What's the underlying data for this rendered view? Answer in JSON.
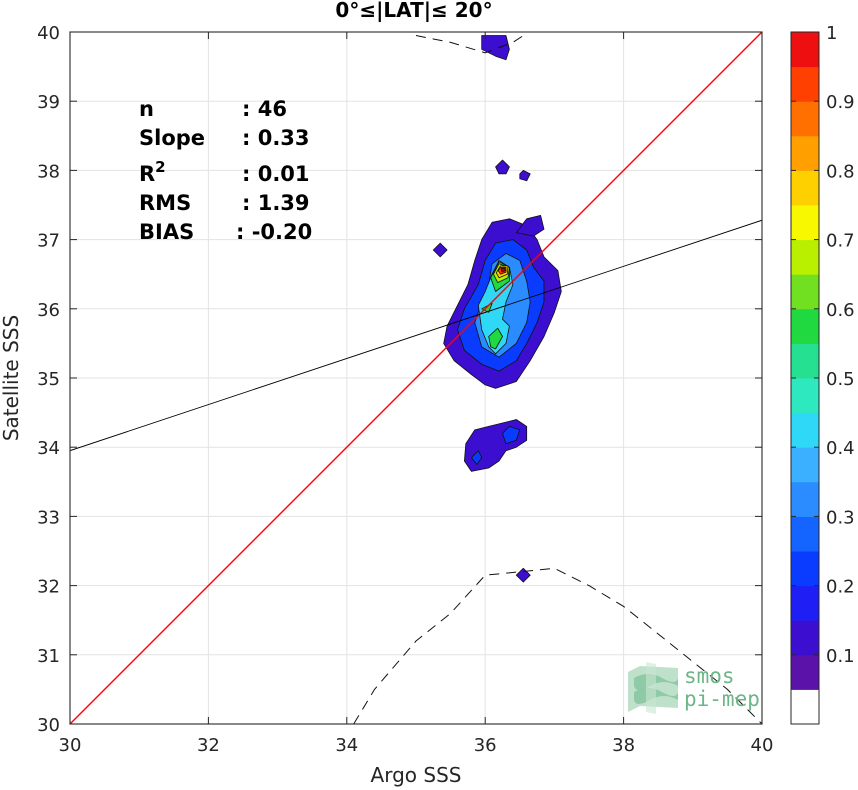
{
  "chart_data": {
    "type": "heatmap",
    "title": "0°≤|LAT|≤ 20°",
    "xlabel": "Argo SSS",
    "ylabel": "Satellite SSS",
    "xlim": [
      30,
      40
    ],
    "ylim": [
      30,
      40
    ],
    "xticks": [
      30,
      32,
      34,
      36,
      38,
      40
    ],
    "yticks": [
      30,
      31,
      32,
      33,
      34,
      35,
      36,
      37,
      38,
      39,
      40
    ],
    "grid": true,
    "stats": [
      {
        "label": "n",
        "value": ": 46"
      },
      {
        "label": "Slope",
        "value": ": 0.33"
      },
      {
        "label": "R",
        "sup": "2",
        "value": ": 0.01"
      },
      {
        "label": "RMS",
        "value": ": 1.39"
      },
      {
        "label": "BIAS",
        "value": ": -0.20"
      }
    ],
    "identity_line": {
      "color": "#ff0000",
      "slope": 1,
      "intercept": 0
    },
    "regression_line": {
      "color": "#000000",
      "slope": 0.33,
      "x0": 30,
      "y0": 33.95,
      "x1": 40,
      "y1": 37.28
    },
    "reference_curves": [
      {
        "style": "dashed",
        "points": [
          [
            35.0,
            39.95
          ],
          [
            35.5,
            39.85
          ],
          [
            36.0,
            39.7
          ],
          [
            36.4,
            39.85
          ],
          [
            36.6,
            39.98
          ]
        ]
      },
      {
        "style": "dashed",
        "points": [
          [
            34.1,
            30.0
          ],
          [
            34.4,
            30.5
          ],
          [
            35.0,
            31.2
          ],
          [
            35.5,
            31.6
          ],
          [
            36.0,
            32.15
          ],
          [
            36.5,
            32.2
          ],
          [
            37.0,
            32.25
          ],
          [
            37.5,
            32.0
          ],
          [
            38.0,
            31.7
          ],
          [
            38.5,
            31.3
          ],
          [
            39.0,
            30.9
          ],
          [
            39.5,
            30.5
          ],
          [
            40.0,
            30.0
          ]
        ]
      }
    ],
    "colorbar": {
      "ticks": [
        0.1,
        0.2,
        0.3,
        0.4,
        0.5,
        0.6,
        0.7,
        0.8,
        0.9,
        1
      ],
      "tick_labels": [
        "0.1",
        "0.2",
        "0.3",
        "0.4",
        "0.5",
        "0.6",
        "0.7",
        "0.8",
        "0.9",
        "1"
      ],
      "range": [
        0,
        1
      ],
      "colors": [
        "#ffffff",
        "#5a12a8",
        "#3c0fd0",
        "#1f1ff5",
        "#0a3cff",
        "#1464ff",
        "#2a8cff",
        "#3ab0ff",
        "#30d8f8",
        "#2ee8c0",
        "#25e090",
        "#20d840",
        "#70e020",
        "#b8f000",
        "#f8f800",
        "#ffd000",
        "#ffa000",
        "#ff7000",
        "#ff4000",
        "#ee1010",
        "#b80000",
        "#800000"
      ]
    },
    "density_levels": [
      {
        "level": 0.1,
        "regions": [
          [
            [
              36.15,
              34.85
            ],
            [
              36.45,
              34.95
            ],
            [
              36.65,
              35.25
            ],
            [
              36.85,
              35.6
            ],
            [
              37.0,
              35.95
            ],
            [
              37.1,
              36.25
            ],
            [
              37.05,
              36.55
            ],
            [
              36.85,
              36.75
            ],
            [
              36.75,
              37.0
            ],
            [
              36.6,
              37.2
            ],
            [
              36.35,
              37.3
            ],
            [
              36.1,
              37.25
            ],
            [
              35.95,
              37.0
            ],
            [
              35.85,
              36.7
            ],
            [
              35.75,
              36.35
            ],
            [
              35.6,
              36.05
            ],
            [
              35.45,
              35.75
            ],
            [
              35.4,
              35.5
            ],
            [
              35.55,
              35.25
            ],
            [
              35.8,
              35.05
            ],
            [
              36.0,
              34.9
            ]
          ],
          [
            [
              36.05,
              33.7
            ],
            [
              35.8,
              33.65
            ],
            [
              35.7,
              33.8
            ],
            [
              35.72,
              34.05
            ],
            [
              35.85,
              34.25
            ],
            [
              36.05,
              34.3
            ],
            [
              36.25,
              34.35
            ],
            [
              36.45,
              34.4
            ],
            [
              36.6,
              34.3
            ],
            [
              36.6,
              34.1
            ],
            [
              36.45,
              34.0
            ],
            [
              36.3,
              33.95
            ],
            [
              36.2,
              33.8
            ]
          ],
          [
            [
              35.95,
              39.95
            ],
            [
              36.3,
              39.95
            ],
            [
              36.35,
              39.75
            ],
            [
              36.3,
              39.6
            ],
            [
              36.15,
              39.65
            ],
            [
              35.95,
              39.75
            ]
          ],
          [
            [
              36.15,
              38.05
            ],
            [
              36.25,
              38.15
            ],
            [
              36.35,
              38.05
            ],
            [
              36.3,
              37.95
            ],
            [
              36.2,
              37.95
            ]
          ],
          [
            [
              36.45,
              37.1
            ],
            [
              36.6,
              37.3
            ],
            [
              36.8,
              37.35
            ],
            [
              36.85,
              37.15
            ],
            [
              36.7,
              37.05
            ]
          ],
          [
            [
              35.25,
              36.85
            ],
            [
              35.35,
              36.95
            ],
            [
              35.45,
              36.85
            ],
            [
              35.35,
              36.75
            ]
          ],
          [
            [
              36.45,
              32.15
            ],
            [
              36.55,
              32.25
            ],
            [
              36.65,
              32.15
            ],
            [
              36.55,
              32.05
            ]
          ],
          [
            [
              36.5,
              37.95
            ],
            [
              36.55,
              38.0
            ],
            [
              36.65,
              37.95
            ],
            [
              36.6,
              37.85
            ],
            [
              36.5,
              37.88
            ]
          ]
        ]
      },
      {
        "level": 0.2,
        "regions": [
          [
            [
              36.2,
              35.1
            ],
            [
              36.45,
              35.25
            ],
            [
              36.6,
              35.5
            ],
            [
              36.75,
              35.8
            ],
            [
              36.85,
              36.1
            ],
            [
              36.85,
              36.4
            ],
            [
              36.7,
              36.6
            ],
            [
              36.6,
              36.85
            ],
            [
              36.4,
              37.0
            ],
            [
              36.15,
              36.95
            ],
            [
              36.0,
              36.7
            ],
            [
              35.9,
              36.35
            ],
            [
              35.7,
              36.0
            ],
            [
              35.6,
              35.7
            ],
            [
              35.7,
              35.4
            ],
            [
              35.95,
              35.2
            ]
          ],
          [
            [
              36.3,
              34.05
            ],
            [
              36.45,
              34.1
            ],
            [
              36.5,
              34.25
            ],
            [
              36.35,
              34.3
            ],
            [
              36.25,
              34.2
            ]
          ],
          [
            [
              35.8,
              33.85
            ],
            [
              35.9,
              33.95
            ],
            [
              35.95,
              33.85
            ],
            [
              35.88,
              33.75
            ]
          ]
        ]
      },
      {
        "level": 0.3,
        "regions": [
          [
            [
              36.2,
              35.3
            ],
            [
              36.45,
              35.5
            ],
            [
              36.6,
              35.8
            ],
            [
              36.65,
              36.1
            ],
            [
              36.6,
              36.4
            ],
            [
              36.5,
              36.7
            ],
            [
              36.3,
              36.8
            ],
            [
              36.1,
              36.65
            ],
            [
              36.05,
              36.35
            ],
            [
              35.95,
              36.1
            ],
            [
              35.85,
              35.8
            ],
            [
              35.95,
              35.45
            ]
          ]
        ]
      },
      {
        "level": 0.4,
        "regions": [
          [
            [
              36.15,
              35.35
            ],
            [
              36.3,
              35.5
            ],
            [
              36.35,
              35.75
            ],
            [
              36.25,
              35.85
            ],
            [
              36.3,
              36.1
            ],
            [
              36.4,
              36.35
            ],
            [
              36.35,
              36.6
            ],
            [
              36.2,
              36.7
            ],
            [
              36.1,
              36.5
            ],
            [
              36.0,
              36.25
            ],
            [
              35.9,
              36.05
            ],
            [
              35.95,
              35.7
            ],
            [
              36.05,
              35.45
            ]
          ]
        ]
      },
      {
        "level": 0.5,
        "regions": [
          [
            [
              36.15,
              35.42
            ],
            [
              36.25,
              35.6
            ],
            [
              36.18,
              35.72
            ],
            [
              36.05,
              35.6
            ],
            [
              36.08,
              35.45
            ]
          ],
          [
            [
              36.15,
              36.25
            ],
            [
              36.35,
              36.4
            ],
            [
              36.35,
              36.6
            ],
            [
              36.2,
              36.68
            ],
            [
              36.08,
              36.45
            ]
          ],
          [
            [
              35.95,
              36.0
            ],
            [
              36.1,
              36.08
            ],
            [
              36.05,
              35.95
            ]
          ]
        ]
      },
      {
        "level": 0.6,
        "regions": [
          [
            [
              36.18,
              36.38
            ],
            [
              36.33,
              36.45
            ],
            [
              36.35,
              36.6
            ],
            [
              36.2,
              36.65
            ],
            [
              36.12,
              36.5
            ]
          ]
        ]
      },
      {
        "level": 0.7,
        "regions": [
          [
            [
              36.2,
              36.45
            ],
            [
              36.32,
              36.5
            ],
            [
              36.33,
              36.62
            ],
            [
              36.22,
              36.62
            ],
            [
              36.16,
              36.52
            ]
          ]
        ]
      },
      {
        "level": 0.85,
        "regions": [
          [
            [
              36.22,
              36.5
            ],
            [
              36.3,
              36.53
            ],
            [
              36.3,
              36.6
            ],
            [
              36.22,
              36.6
            ],
            [
              36.19,
              36.55
            ]
          ]
        ]
      },
      {
        "level": 0.95,
        "regions": [
          [
            [
              36.24,
              36.53
            ],
            [
              36.29,
              36.55
            ],
            [
              36.28,
              36.59
            ],
            [
              36.23,
              36.58
            ]
          ]
        ]
      }
    ]
  },
  "logo": {
    "line1": "smos",
    "line2": "pi-mep",
    "color": "#6fb58a"
  }
}
